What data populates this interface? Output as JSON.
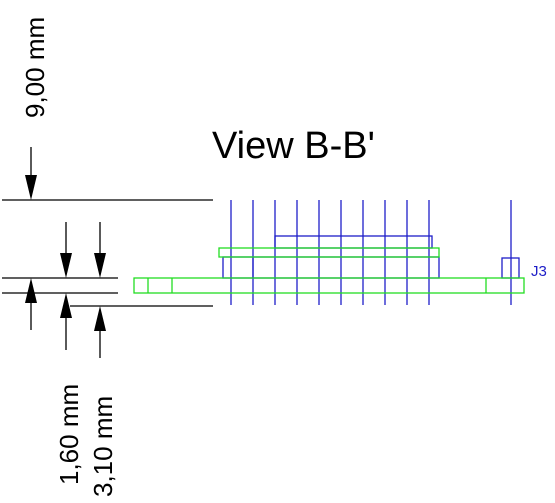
{
  "view_title": "View B-B'",
  "dimensions": {
    "overall_height": "9,00 mm",
    "board_thickness": "1,60 mm",
    "component_offset": "3,10 mm"
  },
  "component_ref": "J3",
  "colors": {
    "dimension": "#000000",
    "connector_pins": "#1e1ec8",
    "pcb_outline": "#22dd22"
  }
}
